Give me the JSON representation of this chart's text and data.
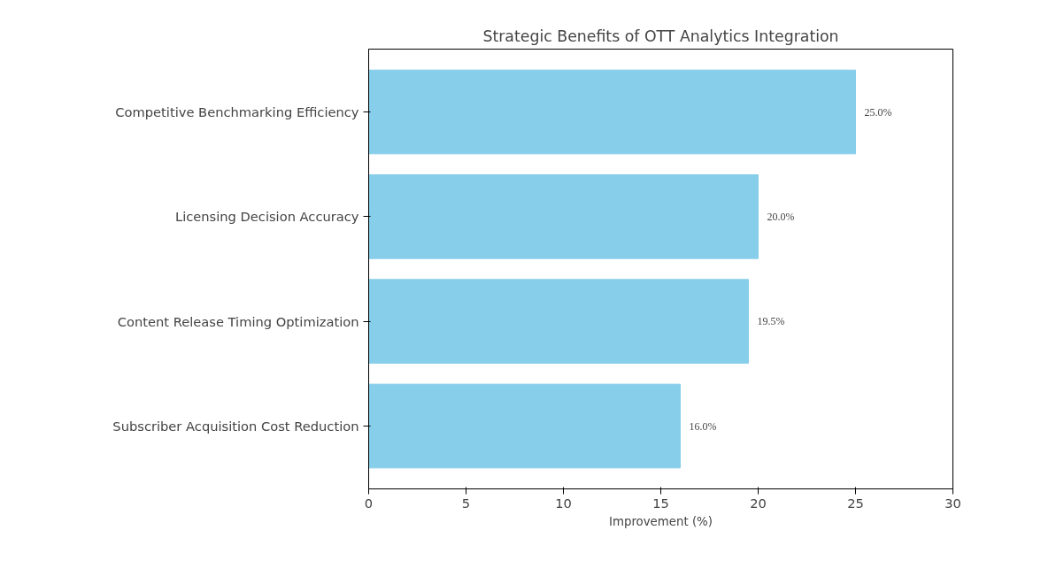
{
  "chart_data": {
    "type": "bar",
    "orientation": "horizontal",
    "title": "Strategic Benefits of OTT Analytics Integration",
    "xlabel": "Improvement (%)",
    "categories": [
      "Competitive Benchmarking Efficiency",
      "Licensing Decision Accuracy",
      "Content Release Timing Optimization",
      "Subscriber Acquisition Cost Reduction"
    ],
    "values": [
      25.0,
      20.0,
      19.5,
      16.0
    ],
    "value_labels": [
      "25.0%",
      "20.0%",
      "19.5%",
      "16.0%"
    ],
    "color": "#87ceeb",
    "xlim": [
      0,
      30
    ],
    "xticks": [
      0,
      5,
      10,
      15,
      20,
      25,
      30
    ],
    "grid": false
  }
}
